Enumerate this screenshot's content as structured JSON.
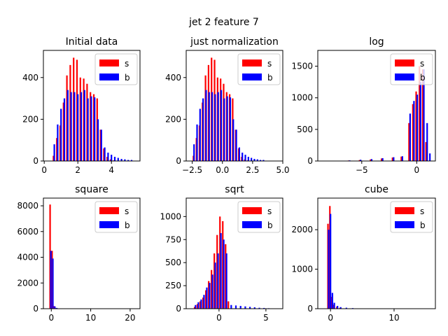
{
  "figure": {
    "suptitle": "jet 2 feature 7"
  },
  "chart_data": [
    {
      "type": "bar",
      "title": "Initial data",
      "xlim": [
        -0.05,
        5.7
      ],
      "ylim": [
        0,
        530
      ],
      "xticks": [
        0,
        2,
        4
      ],
      "xtick_labels": [
        "0",
        "2",
        "4"
      ],
      "yticks": [
        0,
        200,
        400
      ],
      "ytick_labels": [
        "0",
        "200",
        "400"
      ],
      "legend": {
        "placement": "top-right",
        "entries": [
          "s",
          "b"
        ]
      },
      "series": [
        {
          "name": "s",
          "color": "#ff0000",
          "x": [
            0.55,
            0.75,
            0.95,
            1.15,
            1.35,
            1.55,
            1.75,
            1.95,
            2.15,
            2.35,
            2.55,
            2.75,
            2.95,
            3.15,
            3.35,
            3.55,
            3.75,
            3.95,
            4.15
          ],
          "values": [
            25,
            110,
            170,
            280,
            410,
            460,
            495,
            485,
            400,
            395,
            370,
            330,
            320,
            300,
            150,
            60,
            20,
            8,
            3
          ]
        },
        {
          "name": "b",
          "color": "#0000ff",
          "x": [
            0.6,
            0.8,
            1.0,
            1.2,
            1.4,
            1.6,
            1.8,
            2.0,
            2.2,
            2.4,
            2.6,
            2.8,
            3.0,
            3.2,
            3.4,
            3.6,
            3.8,
            4.0,
            4.2,
            4.4,
            4.6,
            4.8,
            5.0,
            5.2
          ],
          "values": [
            80,
            175,
            250,
            300,
            340,
            330,
            330,
            320,
            330,
            340,
            300,
            310,
            305,
            200,
            150,
            65,
            40,
            30,
            20,
            15,
            10,
            8,
            5,
            5
          ]
        }
      ]
    },
    {
      "type": "bar",
      "title": "just normalization",
      "xlim": [
        -3.0,
        5.0
      ],
      "ylim": [
        0,
        530
      ],
      "xticks": [
        -2.5,
        0.0,
        2.5,
        5.0
      ],
      "xtick_labels": [
        "−2.5",
        "0.0",
        "2.5",
        "5.0"
      ],
      "yticks": [
        0,
        200,
        400
      ],
      "ytick_labels": [
        "0",
        "200",
        "400"
      ],
      "legend": {
        "placement": "top-right",
        "entries": [
          "s",
          "b"
        ]
      },
      "series": [
        {
          "name": "s",
          "color": "#ff0000",
          "x": [
            -2.4,
            -2.15,
            -1.9,
            -1.65,
            -1.4,
            -1.15,
            -0.9,
            -0.65,
            -0.4,
            -0.15,
            0.1,
            0.35,
            0.6,
            0.85,
            1.1,
            1.35,
            1.6,
            1.85,
            2.1
          ],
          "values": [
            25,
            110,
            170,
            280,
            410,
            460,
            495,
            485,
            400,
            395,
            370,
            330,
            320,
            300,
            150,
            60,
            20,
            8,
            3
          ]
        },
        {
          "name": "b",
          "color": "#0000ff",
          "x": [
            -2.35,
            -2.1,
            -1.85,
            -1.6,
            -1.35,
            -1.1,
            -0.85,
            -0.6,
            -0.35,
            -0.1,
            0.15,
            0.4,
            0.65,
            0.9,
            1.15,
            1.4,
            1.65,
            1.9,
            2.15,
            2.4,
            2.65,
            2.9,
            3.15,
            3.4
          ],
          "values": [
            80,
            175,
            250,
            300,
            340,
            330,
            330,
            320,
            330,
            340,
            300,
            310,
            305,
            200,
            150,
            65,
            40,
            30,
            20,
            15,
            10,
            8,
            5,
            5
          ]
        }
      ]
    },
    {
      "type": "bar",
      "title": "log",
      "xlim": [
        -9.0,
        1.7
      ],
      "ylim": [
        0,
        1750
      ],
      "xticks": [
        -5,
        0
      ],
      "xtick_labels": [
        "−5",
        "0"
      ],
      "yticks": [
        0,
        500,
        1000,
        1500
      ],
      "ytick_labels": [
        "0",
        "500",
        "1000",
        "1500"
      ],
      "legend": {
        "placement": "top-right",
        "entries": [
          "s",
          "b"
        ]
      },
      "series": [
        {
          "name": "s",
          "color": "#ff0000",
          "x": [
            -7.2,
            -6.2,
            -5.2,
            -4.2,
            -3.2,
            -2.2,
            -1.4,
            -0.7,
            -0.35,
            -0.05,
            0.25,
            0.55,
            0.85
          ],
          "values": [
            5,
            8,
            15,
            25,
            40,
            55,
            70,
            600,
            900,
            1100,
            1500,
            1450,
            300
          ]
        },
        {
          "name": "b",
          "color": "#0000ff",
          "x": [
            -7.1,
            -6.1,
            -5.1,
            -4.1,
            -3.1,
            -2.1,
            -1.3,
            -0.6,
            -0.25,
            0.05,
            0.35,
            0.65,
            0.95,
            1.2
          ],
          "values": [
            5,
            10,
            20,
            30,
            45,
            60,
            75,
            750,
            950,
            1050,
            1250,
            1450,
            600,
            120
          ]
        }
      ]
    },
    {
      "type": "bar",
      "title": "square",
      "xlim": [
        -2.0,
        22.5
      ],
      "ylim": [
        0,
        8600
      ],
      "xticks": [
        0,
        10,
        20
      ],
      "xtick_labels": [
        "0",
        "10",
        "20"
      ],
      "yticks": [
        0,
        2000,
        4000,
        6000,
        8000
      ],
      "ytick_labels": [
        "0",
        "2000",
        "4000",
        "6000",
        "8000"
      ],
      "legend": {
        "placement": "top-right",
        "entries": [
          "s",
          "b"
        ]
      },
      "series": [
        {
          "name": "s",
          "color": "#ff0000",
          "x": [
            -0.3,
            0.2,
            0.7,
            1.2
          ],
          "values": [
            8100,
            4500,
            200,
            50
          ]
        },
        {
          "name": "b",
          "color": "#0000ff",
          "x": [
            -0.1,
            0.4,
            0.9,
            1.4,
            2.2,
            3.2
          ],
          "values": [
            4500,
            3900,
            180,
            60,
            20,
            10
          ]
        }
      ]
    },
    {
      "type": "bar",
      "title": "sqrt",
      "xlim": [
        -3.5,
        6.8
      ],
      "ylim": [
        0,
        1200
      ],
      "xticks": [
        0,
        5
      ],
      "xtick_labels": [
        "0",
        "5"
      ],
      "yticks": [
        0,
        250,
        500,
        750,
        1000
      ],
      "ytick_labels": [
        "0",
        "250",
        "500",
        "750",
        "1000"
      ],
      "legend": {
        "placement": "top-right",
        "entries": [
          "s",
          "b"
        ]
      },
      "series": [
        {
          "name": "s",
          "color": "#ff0000",
          "x": [
            -2.6,
            -2.3,
            -2.0,
            -1.7,
            -1.4,
            -1.1,
            -0.8,
            -0.5,
            -0.2,
            0.1,
            0.4,
            0.7,
            1.0
          ],
          "values": [
            20,
            50,
            80,
            120,
            200,
            300,
            420,
            600,
            800,
            1000,
            950,
            700,
            80
          ]
        },
        {
          "name": "b",
          "color": "#0000ff",
          "x": [
            -2.5,
            -2.2,
            -1.9,
            -1.6,
            -1.3,
            -1.0,
            -0.7,
            -0.4,
            -0.1,
            0.2,
            0.5,
            0.8,
            1.3,
            1.8,
            2.3,
            2.8,
            3.3,
            3.8,
            4.3,
            4.8,
            5.3
          ],
          "values": [
            40,
            70,
            100,
            150,
            230,
            280,
            370,
            500,
            600,
            820,
            750,
            600,
            40,
            35,
            30,
            25,
            20,
            15,
            10,
            8,
            5
          ]
        }
      ]
    },
    {
      "type": "bar",
      "title": "cube",
      "xlim": [
        -2.0,
        16.5
      ],
      "ylim": [
        0,
        2800
      ],
      "xticks": [
        0,
        10
      ],
      "xtick_labels": [
        "0",
        "10"
      ],
      "yticks": [
        0,
        1000,
        2000
      ],
      "ytick_labels": [
        "0",
        "1000",
        "2000"
      ],
      "legend": {
        "placement": "top-right",
        "entries": [
          "s",
          "b"
        ]
      },
      "series": [
        {
          "name": "s",
          "color": "#ff0000",
          "x": [
            -0.4,
            -0.1,
            0.2,
            0.5,
            1.0,
            1.5
          ],
          "values": [
            2150,
            2600,
            300,
            100,
            50,
            20
          ]
        },
        {
          "name": "b",
          "color": "#0000ff",
          "x": [
            -0.3,
            0.0,
            0.3,
            0.6,
            1.1,
            1.6,
            2.5,
            3.5,
            4.5
          ],
          "values": [
            2000,
            2400,
            400,
            150,
            70,
            40,
            25,
            15,
            8
          ]
        }
      ]
    }
  ]
}
